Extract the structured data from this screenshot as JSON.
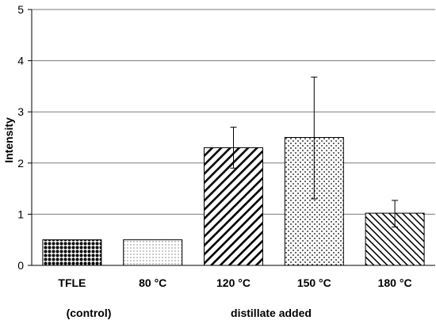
{
  "chart_data": {
    "type": "bar",
    "title": "",
    "xlabel": "",
    "ylabel": "Intensity",
    "ylim": [
      0,
      5
    ],
    "yticks": [
      "0",
      "1",
      "2",
      "3",
      "4",
      "5"
    ],
    "grid": true,
    "categories": [
      "TFLE",
      "80 °C",
      "120 °C",
      "150 °C",
      "180 °C"
    ],
    "values": [
      0.5,
      0.5,
      2.3,
      2.5,
      1.02
    ],
    "error_low": [
      0.5,
      0.5,
      1.9,
      1.3,
      0.75
    ],
    "error_high": [
      0.5,
      0.5,
      2.7,
      3.68,
      1.27
    ],
    "patterns": [
      "dense-dots",
      "fine-dots",
      "diagonal-right",
      "speckle",
      "diagonal-left"
    ],
    "group_labels": {
      "control": "(control)",
      "treatment": "distillate added"
    }
  }
}
